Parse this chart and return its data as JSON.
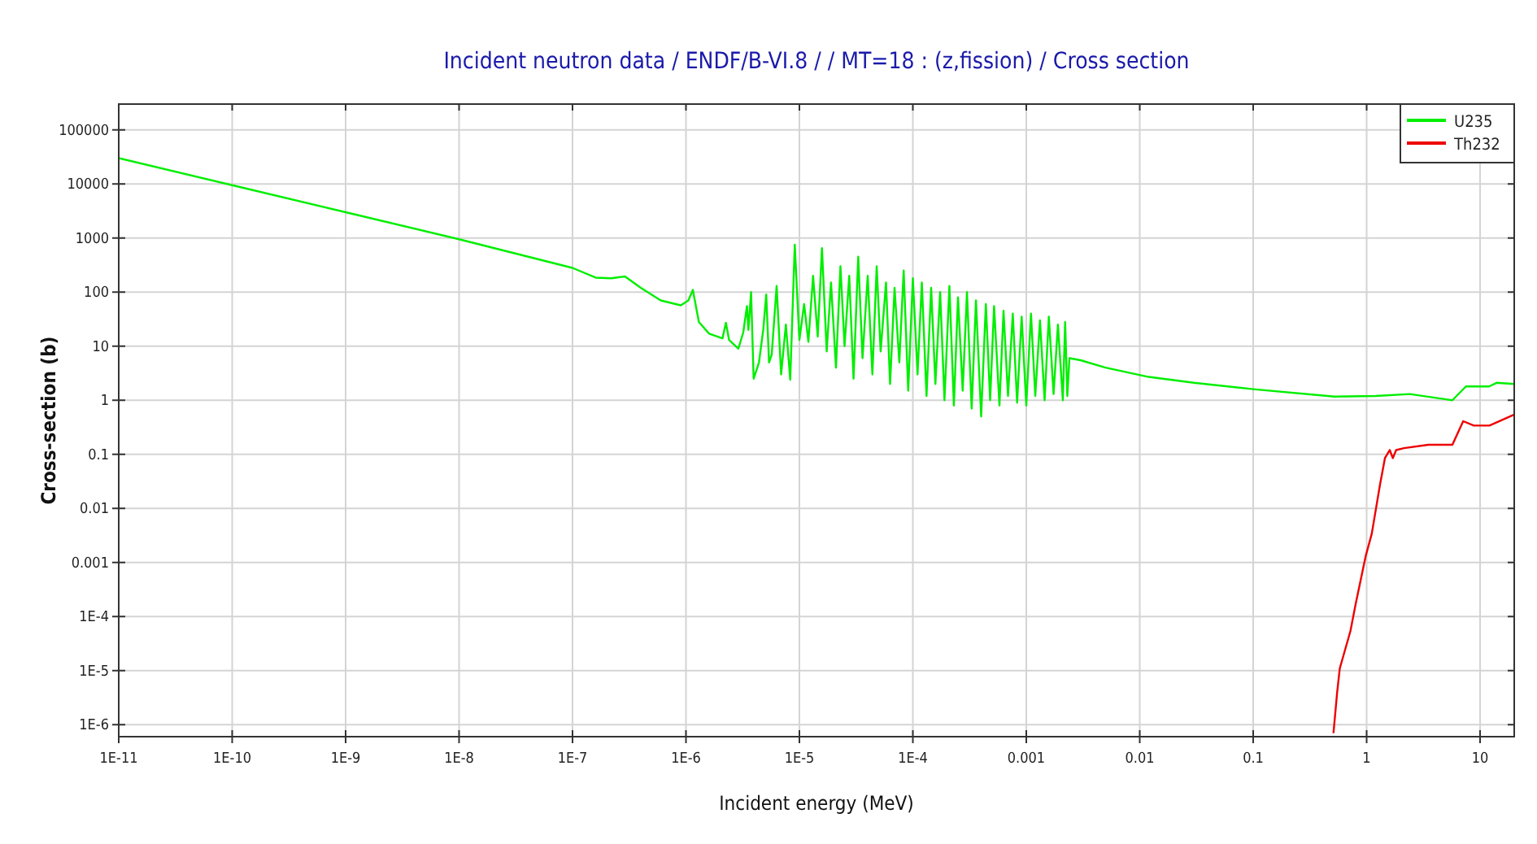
{
  "chart_data": {
    "type": "line",
    "title": "Incident neutron data / ENDF/B-VI.8 / / MT=18 : (z,fission) / Cross section",
    "xlabel": "Incident energy (MeV)",
    "ylabel": "Cross-section (b)",
    "log": "xy",
    "grid": true,
    "legend": "top right",
    "line_style": "solid",
    "marker": "none",
    "xlim": [
      1e-11,
      20
    ],
    "ylim": [
      6e-07,
      300000
    ],
    "xticks": [
      {
        "value": 1e-11,
        "label": "1E-11"
      },
      {
        "value": 1e-10,
        "label": "1E-10"
      },
      {
        "value": 1e-09,
        "label": "1E-9"
      },
      {
        "value": 1e-08,
        "label": "1E-8"
      },
      {
        "value": 1e-07,
        "label": "1E-7"
      },
      {
        "value": 1e-06,
        "label": "1E-6"
      },
      {
        "value": 1e-05,
        "label": "1E-5"
      },
      {
        "value": 0.0001,
        "label": "1E-4"
      },
      0.001,
      0.01,
      0.1,
      1,
      10
    ],
    "yticks": [
      {
        "value": 1e-06,
        "label": "1E-6"
      },
      {
        "value": 1e-05,
        "label": "1E-5"
      },
      {
        "value": 0.0001,
        "label": "1E-4"
      },
      0.001,
      0.01,
      0.1,
      1,
      10,
      100,
      1000,
      10000,
      100000
    ],
    "series": [
      {
        "name": "U235",
        "color": "#00ee00",
        "x": [
          1e-11,
          1e-10,
          1e-09,
          1e-08,
          1e-07,
          1.6e-07,
          2.2e-07,
          2.9e-07,
          4e-07,
          6e-07,
          9e-07,
          1.05e-06,
          1.15e-06,
          1.3e-06,
          1.6e-06,
          2.1e-06,
          2.25e-06,
          2.4e-06,
          2.9e-06,
          3.2e-06,
          3.45e-06,
          3.55e-06,
          3.75e-06,
          3.95e-06,
          4.4e-06,
          4.8e-06,
          5.1e-06,
          5.4e-06,
          5.7e-06,
          6.3e-06,
          6.9e-06,
          7.6e-06,
          8.3e-06,
          9.1e-06,
          1e-05,
          1.1e-05,
          1.2e-05,
          1.32e-05,
          1.45e-05,
          1.58e-05,
          1.74e-05,
          1.9e-05,
          2.1e-05,
          2.3e-05,
          2.5e-05,
          2.75e-05,
          3e-05,
          3.3e-05,
          3.6e-05,
          4e-05,
          4.4e-05,
          4.8e-05,
          5.2e-05,
          5.8e-05,
          6.3e-05,
          6.9e-05,
          7.6e-05,
          8.3e-05,
          9.1e-05,
          0.0001,
          0.00011,
          0.00012,
          0.000132,
          0.000145,
          0.000158,
          0.000174,
          0.00019,
          0.00021,
          0.00023,
          0.00025,
          0.000275,
          0.0003,
          0.00033,
          0.00036,
          0.0004,
          0.00044,
          0.00048,
          0.00052,
          0.00058,
          0.00063,
          0.00069,
          0.00076,
          0.00083,
          0.00091,
          0.001,
          0.0011,
          0.0012,
          0.00132,
          0.00145,
          0.00158,
          0.00174,
          0.0019,
          0.0021,
          0.0022,
          0.0023,
          0.0024,
          0.003,
          0.005,
          0.012,
          0.03,
          0.1,
          0.52,
          1.2,
          2.4,
          5.7,
          7.5,
          12,
          14,
          20
        ],
        "values": [
          30000,
          9500,
          3000,
          950,
          280,
          185,
          180,
          195,
          120,
          70,
          57,
          70,
          110,
          28,
          17,
          14,
          27,
          13,
          9,
          18,
          55,
          20,
          100,
          2.5,
          5,
          20,
          90,
          5,
          7,
          130,
          3,
          25,
          2.4,
          750,
          13,
          60,
          12,
          200,
          15,
          650,
          8,
          150,
          4,
          300,
          10,
          200,
          2.5,
          450,
          6,
          200,
          3,
          300,
          8,
          150,
          2,
          120,
          5,
          250,
          1.5,
          180,
          3,
          150,
          1.2,
          120,
          2,
          100,
          1,
          130,
          0.8,
          80,
          1.5,
          100,
          0.7,
          70,
          0.5,
          60,
          1,
          55,
          0.8,
          45,
          1.2,
          40,
          0.9,
          35,
          0.8,
          40,
          1.2,
          30,
          1,
          35,
          1.3,
          25,
          1,
          28,
          1.2,
          6,
          5.5,
          4,
          2.7,
          2.1,
          1.6,
          1.17,
          1.2,
          1.3,
          1.0,
          1.8,
          1.8,
          2.1,
          2.0
        ]
      },
      {
        "name": "Th232",
        "color": "#ee0000",
        "x": [
          0.51,
          0.55,
          0.58,
          0.72,
          0.8,
          0.98,
          1.11,
          1.31,
          1.45,
          1.6,
          1.7,
          1.82,
          2.14,
          3.5,
          5.7,
          7.1,
          8.8,
          12.1,
          19.8
        ],
        "values": [
          7e-07,
          4e-06,
          1.1e-05,
          5.4e-05,
          0.00017,
          0.0013,
          0.0034,
          0.027,
          0.085,
          0.12,
          0.085,
          0.12,
          0.13,
          0.15,
          0.15,
          0.41,
          0.34,
          0.34,
          0.54
        ]
      }
    ]
  }
}
